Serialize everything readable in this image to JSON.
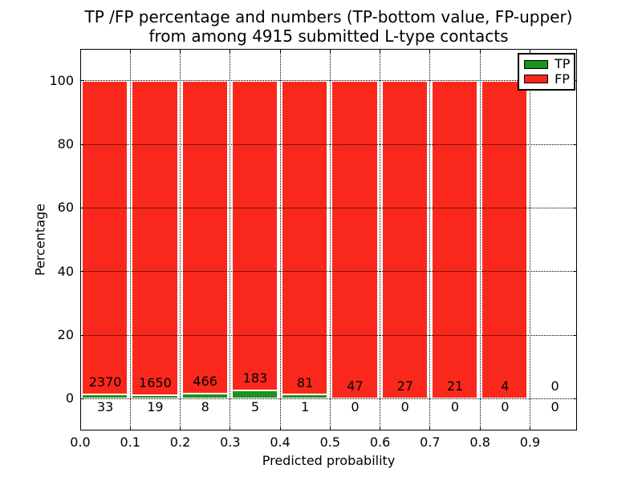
{
  "figure": {
    "title_line1": "TP /FP percentage and numbers (TP-bottom value, FP-upper)",
    "title_line2": "from among 4915 submitted L-type contacts"
  },
  "chart_data": {
    "type": "bar",
    "stacked": true,
    "title": "TP /FP percentage and numbers (TP-bottom value, FP-upper) from among 4915 submitted L-type contacts",
    "xlabel": "Predicted probability",
    "ylabel": "Percentage",
    "xlim": [
      0.0,
      1.0
    ],
    "ylim": [
      -10,
      110
    ],
    "x_tick_labels": [
      "0.0",
      "0.1",
      "0.2",
      "0.3",
      "0.4",
      "0.5",
      "0.6",
      "0.7",
      "0.8",
      "0.9"
    ],
    "y_tick_values": [
      0,
      20,
      40,
      60,
      80,
      100
    ],
    "grid": "dotted black, both axes, drawn above bars",
    "total_submitted": 4915,
    "bin_edges": [
      0.0,
      0.1,
      0.2,
      0.3,
      0.4,
      0.5,
      0.6,
      0.7,
      0.8,
      0.9,
      1.0
    ],
    "bins": [
      {
        "range": "0.0-0.1",
        "tp": 33,
        "fp": 2370
      },
      {
        "range": "0.1-0.2",
        "tp": 19,
        "fp": 1650
      },
      {
        "range": "0.2-0.3",
        "tp": 8,
        "fp": 466
      },
      {
        "range": "0.3-0.4",
        "tp": 5,
        "fp": 183
      },
      {
        "range": "0.4-0.5",
        "tp": 1,
        "fp": 81
      },
      {
        "range": "0.5-0.6",
        "tp": 0,
        "fp": 47
      },
      {
        "range": "0.6-0.7",
        "tp": 0,
        "fp": 27
      },
      {
        "range": "0.7-0.8",
        "tp": 0,
        "fp": 21
      },
      {
        "range": "0.8-0.9",
        "tp": 0,
        "fp": 4
      },
      {
        "range": "0.9-1.0",
        "tp": 0,
        "fp": 0
      }
    ],
    "bar_semantics": "Each bar is stacked to 100%: TP percentage (green) at bottom, FP percentage (red) above; labels show raw counts (FP count inside red bar bottom, TP count below axis).",
    "legend": {
      "position": "upper right",
      "entries": [
        {
          "label": "TP",
          "color": "#1f8f1f"
        },
        {
          "label": "FP",
          "color": "#fa281c"
        }
      ]
    }
  },
  "colors": {
    "tp_green": "#1f8f1f",
    "fp_red": "#fa281c",
    "grid": "#000000",
    "spine": "#000000",
    "background": "#ffffff"
  }
}
